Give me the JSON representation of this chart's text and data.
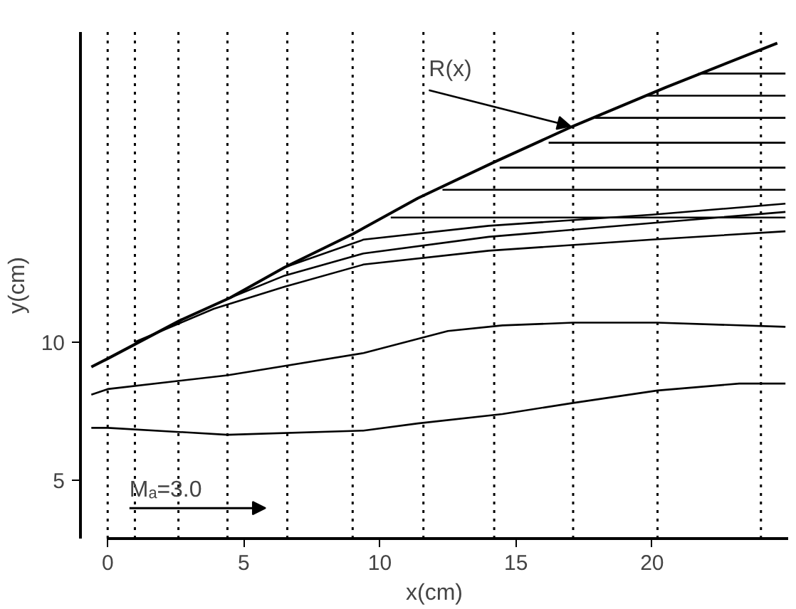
{
  "chart_data": {
    "type": "line",
    "xlabel": "x(cm)",
    "ylabel": "y(cm)",
    "xlim": [
      -1.0,
      25.0
    ],
    "ylim": [
      2.9,
      21.2
    ],
    "xticks": [
      0,
      5,
      10,
      15,
      20
    ],
    "yticks": [
      5,
      10
    ],
    "grid": false,
    "marker": "none",
    "line_style": "solid",
    "series": [
      {
        "color": "#000000",
        "x": [
          -0.6,
          0,
          2.7,
          4.5,
          6.5,
          9.0,
          11.4,
          14.2,
          17.1,
          20.5,
          24.6
        ],
        "values": [
          9.1,
          9.4,
          10.8,
          11.6,
          12.7,
          13.9,
          15.2,
          16.5,
          17.8,
          19.2,
          20.8
        ]
      },
      {
        "color": "#000000",
        "x": [
          -0.6,
          0,
          4.4,
          9.4,
          11.4,
          14.5,
          17.1,
          20.2,
          23.2,
          24.9
        ],
        "values": [
          6.9,
          6.9,
          6.65,
          6.8,
          7.06,
          7.4,
          7.8,
          8.25,
          8.5,
          8.5
        ]
      },
      {
        "color": "#000000",
        "x": [
          -0.6,
          0,
          4.4,
          9.4,
          12.5,
          14.5,
          17.1,
          20.2,
          24.9
        ],
        "values": [
          8.1,
          8.3,
          8.8,
          9.6,
          10.4,
          10.6,
          10.7,
          10.7,
          10.55
        ]
      },
      {
        "color": "#000000",
        "x": [
          1.0,
          3.9,
          6.5,
          9.4,
          14.0,
          20.0,
          24.9
        ],
        "values": [
          10.0,
          11.2,
          12.0,
          12.8,
          13.3,
          13.7,
          14.0
        ]
      },
      {
        "color": "#000000",
        "x": [
          4.5,
          6.5,
          9.4,
          14.0,
          20.0,
          24.9
        ],
        "values": [
          11.6,
          12.4,
          13.2,
          13.8,
          14.3,
          14.7
        ]
      },
      {
        "color": "#000000",
        "x": [
          6.5,
          9.4,
          14.0,
          20.0,
          24.9
        ],
        "values": [
          12.7,
          13.7,
          14.2,
          14.6,
          15.0
        ]
      },
      {
        "color": "#000000",
        "x": [
          10.4,
          24.9
        ],
        "values": [
          14.5,
          14.5
        ]
      },
      {
        "color": "#000000",
        "x": [
          12.3,
          24.9
        ],
        "values": [
          15.5,
          15.5
        ]
      },
      {
        "color": "#000000",
        "x": [
          14.4,
          24.9
        ],
        "values": [
          16.3,
          16.3
        ]
      },
      {
        "color": "#000000",
        "x": [
          16.2,
          24.9
        ],
        "values": [
          17.2,
          17.2
        ]
      },
      {
        "color": "#000000",
        "x": [
          17.9,
          24.9
        ],
        "values": [
          18.1,
          18.1
        ]
      },
      {
        "color": "#000000",
        "x": [
          19.8,
          24.9
        ],
        "values": [
          18.9,
          18.9
        ]
      },
      {
        "color": "#000000",
        "x": [
          21.7,
          24.9
        ],
        "values": [
          19.7,
          19.7
        ]
      }
    ],
    "ref_lines": [
      {
        "axis": "x",
        "value": 0,
        "color": "#000000",
        "line_style": "dotted"
      },
      {
        "axis": "x",
        "value": 1.0,
        "color": "#000000",
        "line_style": "dotted"
      },
      {
        "axis": "x",
        "value": 2.6,
        "color": "#000000",
        "line_style": "dotted"
      },
      {
        "axis": "x",
        "value": 4.4,
        "color": "#000000",
        "line_style": "dotted"
      },
      {
        "axis": "x",
        "value": 6.6,
        "color": "#000000",
        "line_style": "dotted"
      },
      {
        "axis": "x",
        "value": 9.0,
        "color": "#000000",
        "line_style": "dotted"
      },
      {
        "axis": "x",
        "value": 11.6,
        "color": "#000000",
        "line_style": "dotted"
      },
      {
        "axis": "x",
        "value": 14.2,
        "color": "#000000",
        "line_style": "dotted"
      },
      {
        "axis": "x",
        "value": 17.1,
        "color": "#000000",
        "line_style": "dotted"
      },
      {
        "axis": "x",
        "value": 20.2,
        "color": "#000000",
        "line_style": "dotted"
      },
      {
        "axis": "x",
        "value": 24.0,
        "color": "#000000",
        "line_style": "dotted"
      }
    ],
    "annotations": [
      {
        "text": "R(x)",
        "x": 17.0,
        "y": 17.8
      },
      "Mₐ=3.0"
    ]
  }
}
